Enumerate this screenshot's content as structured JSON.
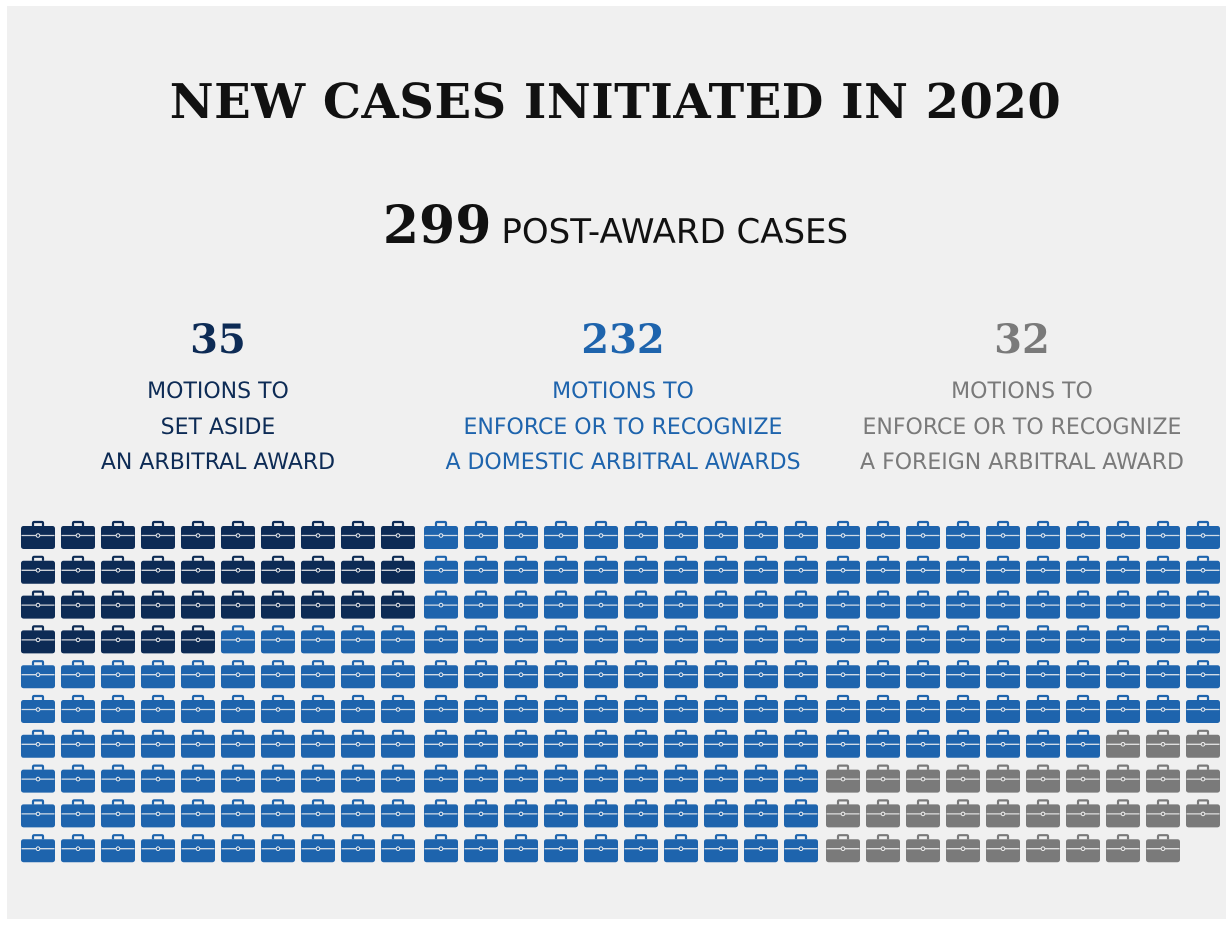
{
  "title": "NEW CASES INITIATED IN 2020",
  "total": {
    "value": "299",
    "label": "POST-AWARD CASES"
  },
  "categories": [
    {
      "value": "35",
      "lines": [
        "MOTIONS TO",
        "SET ASIDE",
        "AN ARBITRAL AWARD"
      ],
      "color": "#0d2b55"
    },
    {
      "value": "232",
      "lines": [
        "MOTIONS TO",
        "ENFORCE OR TO RECOGNIZE",
        "A DOMESTIC ARBITRAL AWARDS"
      ],
      "color": "#1e64ad"
    },
    {
      "value": "32",
      "lines": [
        "MOTIONS TO",
        "ENFORCE OR TO RECOGNIZE",
        "A FOREIGN ARBITRAL AWARD"
      ],
      "color": "#7a7a7a"
    }
  ],
  "chart_data": {
    "type": "waffle",
    "icon": "briefcase-icon",
    "icons_per_row": 30,
    "fill_order": "column-block-wise, 10 icons per row within each block",
    "series": [
      {
        "name": "MOTIONS TO SET ASIDE AN ARBITRAL AWARD",
        "value": 35,
        "color": "#0d2b55"
      },
      {
        "name": "MOTIONS TO ENFORCE OR TO RECOGNIZE A DOMESTIC ARBITRAL AWARDS",
        "value": 232,
        "color": "#1e64ad"
      },
      {
        "name": "MOTIONS TO ENFORCE OR TO RECOGNIZE A FOREIGN ARBITRAL AWARD",
        "value": 32,
        "color": "#7a7a7a"
      }
    ],
    "total": 299
  }
}
